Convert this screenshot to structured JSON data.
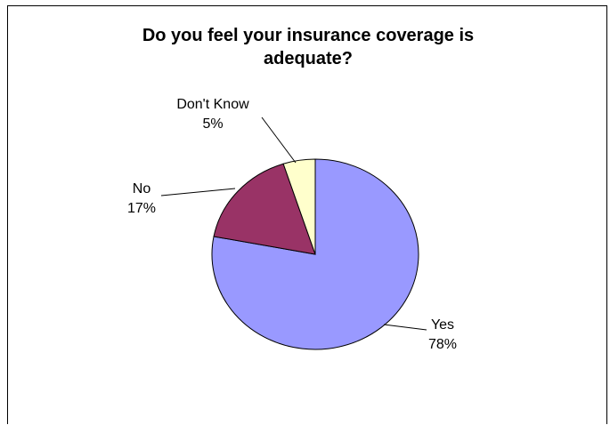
{
  "chart_data": {
    "type": "pie",
    "title_lines": [
      "Do you feel your insurance coverage is",
      "adequate?"
    ],
    "slices": [
      {
        "name": "Yes",
        "value": 78,
        "label": "78%",
        "color": "#9999ff"
      },
      {
        "name": "No",
        "value": 17,
        "label": "17%",
        "color": "#993366"
      },
      {
        "name": "Don't Know",
        "value": 5,
        "label": "5%",
        "color": "#ffffcc"
      }
    ],
    "start": "12 o'clock",
    "direction": "clockwise",
    "legend": "none"
  }
}
